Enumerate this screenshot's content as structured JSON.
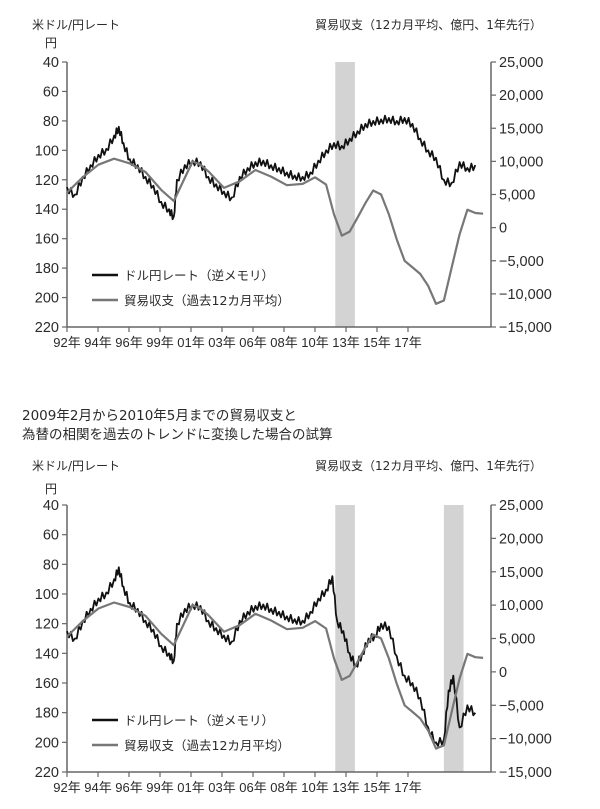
{
  "chart_data": [
    {
      "type": "line",
      "title": "",
      "left_axis_label": "米ドル/円レート",
      "left_axis_unit": "円",
      "right_axis_label": "貿易収支（12カ月平均、億円、1年先行）",
      "left_ylim": [
        220,
        40
      ],
      "left_ticks": [
        "40",
        "60",
        "80",
        "100",
        "120",
        "140",
        "160",
        "180",
        "200",
        "220"
      ],
      "right_ylim": [
        -15000,
        25000
      ],
      "right_ticks": [
        "25,000",
        "20,000",
        "15,000",
        "10,000",
        "5,000",
        "0",
        "−5,000",
        "−10,000",
        "−15,000"
      ],
      "x_ticks": [
        "92年",
        "94年",
        "96年",
        "99年",
        "01年",
        "03年",
        "06年",
        "08年",
        "10年",
        "13年",
        "15年",
        "17年"
      ],
      "shaded_periods": [
        [
          "2009-02",
          "2010-05"
        ]
      ],
      "legend": [
        "ドル円レート（逆メモリ）",
        "貿易収支（過去12カ月平均）"
      ],
      "legend_position": "lower-left",
      "series": [
        {
          "name": "ドル円レート（逆メモリ）",
          "axis": "left",
          "color": "#111111",
          "x": [
            1992.0,
            1992.5,
            1993.0,
            1993.5,
            1994.0,
            1994.5,
            1995.0,
            1995.3,
            1995.6,
            1996.0,
            1996.5,
            1997.0,
            1997.5,
            1998.0,
            1998.5,
            1998.8,
            1999.0,
            1999.5,
            2000.0,
            2000.5,
            2001.0,
            2001.5,
            2002.0,
            2002.5,
            2003.0,
            2003.5,
            2004.0,
            2004.5,
            2005.0,
            2005.5,
            2006.0,
            2006.5,
            2007.0,
            2007.5,
            2008.0,
            2008.5,
            2009.0,
            2009.5,
            2010.0,
            2010.5,
            2011.0,
            2011.5,
            2012.0,
            2012.5,
            2013.0,
            2013.5,
            2014.0,
            2014.5,
            2015.0,
            2015.5,
            2016.0,
            2016.5,
            2017.0,
            2017.5,
            2018.0
          ],
          "values": [
            125,
            130,
            118,
            110,
            103,
            99,
            90,
            84,
            95,
            106,
            110,
            118,
            124,
            135,
            140,
            145,
            120,
            110,
            107,
            108,
            118,
            123,
            128,
            132,
            118,
            112,
            108,
            107,
            110,
            112,
            115,
            117,
            118,
            115,
            107,
            100,
            95,
            97,
            92,
            87,
            82,
            80,
            79,
            78,
            80,
            78,
            82,
            92,
            100,
            105,
            120,
            122,
            108,
            112,
            110
          ]
        },
        {
          "name": "貿易収支（過去12カ月平均）",
          "axis": "right",
          "color": "#777777",
          "x": [
            1992.0,
            1993.0,
            1994.0,
            1995.0,
            1996.0,
            1997.0,
            1998.0,
            1998.8,
            1999.5,
            2000.0,
            2000.5,
            2001.0,
            2002.0,
            2003.0,
            2004.0,
            2005.0,
            2006.0,
            2007.0,
            2007.8,
            2008.5,
            2009.0,
            2009.5,
            2010.0,
            2010.5,
            2011.0,
            2011.5,
            2012.0,
            2012.5,
            2013.0,
            2013.5,
            2014.0,
            2014.5,
            2015.0,
            2015.5,
            2016.0,
            2016.5,
            2017.0,
            2017.5,
            2018.0,
            2018.5
          ],
          "values": [
            5300,
            7600,
            9500,
            10400,
            9700,
            8400,
            5700,
            4000,
            7500,
            10000,
            9500,
            8500,
            6000,
            7000,
            8700,
            7700,
            6400,
            6600,
            7600,
            6500,
            2000,
            -1200,
            -600,
            1500,
            3700,
            5600,
            5000,
            2000,
            -1800,
            -5000,
            -6000,
            -7000,
            -8800,
            -11500,
            -11000,
            -6000,
            -1000,
            2700,
            2200,
            2100
          ]
        }
      ]
    },
    {
      "type": "line",
      "title": "2009年2月から2010年5月までの貿易収支と為替の相関を過去のトレンドに変換した場合の試算",
      "left_axis_label": "米ドル/円レート",
      "left_axis_unit": "円",
      "right_axis_label": "貿易収支（12カ月平均、億円、1年先行）",
      "left_ylim": [
        220,
        40
      ],
      "left_ticks": [
        "40",
        "60",
        "80",
        "100",
        "120",
        "140",
        "160",
        "180",
        "200",
        "220"
      ],
      "right_ylim": [
        -15000,
        25000
      ],
      "right_ticks": [
        "25,000",
        "20,000",
        "15,000",
        "10,000",
        "5,000",
        "0",
        "−5,000",
        "−10,000",
        "−15,000"
      ],
      "x_ticks": [
        "92年",
        "94年",
        "96年",
        "99年",
        "01年",
        "03年",
        "06年",
        "08年",
        "10年",
        "13年",
        "15年",
        "17年"
      ],
      "shaded_periods": [
        [
          "2009-02",
          "2010-05"
        ],
        [
          "2016-01",
          "2017-04"
        ]
      ],
      "legend": [
        "ドル円レート（逆メモリ）",
        "貿易収支（過去12カ月平均）"
      ],
      "legend_position": "lower-left",
      "series": [
        {
          "name": "ドル円レート（逆メモリ）",
          "axis": "left",
          "color": "#111111",
          "x": [
            1992.0,
            1992.5,
            1993.0,
            1993.5,
            1994.0,
            1994.5,
            1995.0,
            1995.3,
            1995.6,
            1996.0,
            1996.5,
            1997.0,
            1997.5,
            1998.0,
            1998.5,
            1998.8,
            1999.0,
            1999.5,
            2000.0,
            2000.5,
            2001.0,
            2001.5,
            2002.0,
            2002.5,
            2003.0,
            2003.5,
            2004.0,
            2004.5,
            2005.0,
            2005.5,
            2006.0,
            2006.5,
            2007.0,
            2007.5,
            2008.0,
            2008.5,
            2008.9,
            2009.2,
            2009.6,
            2010.0,
            2010.4,
            2010.8,
            2011.2,
            2011.6,
            2012.0,
            2012.5,
            2013.0,
            2013.5,
            2014.0,
            2014.5,
            2015.0,
            2015.5,
            2016.0,
            2016.3,
            2016.6,
            2017.0,
            2017.5,
            2018.0
          ],
          "values": [
            125,
            130,
            118,
            110,
            103,
            99,
            90,
            82,
            95,
            106,
            110,
            118,
            124,
            135,
            140,
            145,
            120,
            110,
            107,
            108,
            118,
            123,
            128,
            132,
            118,
            112,
            108,
            107,
            110,
            112,
            115,
            117,
            118,
            112,
            103,
            97,
            88,
            118,
            125,
            140,
            148,
            140,
            130,
            128,
            120,
            122,
            142,
            155,
            160,
            170,
            190,
            200,
            198,
            165,
            155,
            190,
            175,
            180
          ]
        },
        {
          "name": "貿易収支（過去12カ月平均）",
          "axis": "right",
          "color": "#777777",
          "x": [
            1992.0,
            1993.0,
            1994.0,
            1995.0,
            1996.0,
            1997.0,
            1998.0,
            1998.8,
            1999.5,
            2000.0,
            2000.5,
            2001.0,
            2002.0,
            2003.0,
            2004.0,
            2005.0,
            2006.0,
            2007.0,
            2007.8,
            2008.5,
            2009.0,
            2009.5,
            2010.0,
            2010.5,
            2011.0,
            2011.5,
            2012.0,
            2012.5,
            2013.0,
            2013.5,
            2014.0,
            2014.5,
            2015.0,
            2015.5,
            2016.0,
            2016.5,
            2017.0,
            2017.5,
            2018.0,
            2018.5
          ],
          "values": [
            5300,
            7600,
            9500,
            10400,
            9700,
            8400,
            5700,
            4000,
            7500,
            10000,
            9500,
            8500,
            6000,
            7000,
            8700,
            7700,
            6400,
            6600,
            7600,
            6500,
            2000,
            -1200,
            -600,
            1500,
            3700,
            5600,
            5000,
            2000,
            -1800,
            -5000,
            -6000,
            -7000,
            -8800,
            -11500,
            -11000,
            -6000,
            -1000,
            2700,
            2200,
            2100
          ]
        }
      ]
    }
  ],
  "chart1": {
    "left_label": "米ドル/円レート",
    "left_unit": "円",
    "right_label": "貿易収支（12カ月平均、億円、1年先行）"
  },
  "chart2": {
    "title_line1": "2009年2月から2010年5月までの貿易収支と",
    "title_line2": "為替の相関を過去のトレンドに変換した場合の試算",
    "left_label": "米ドル/円レート",
    "left_unit": "円",
    "right_label": "貿易収支（12カ月平均、億円、1年先行）"
  }
}
